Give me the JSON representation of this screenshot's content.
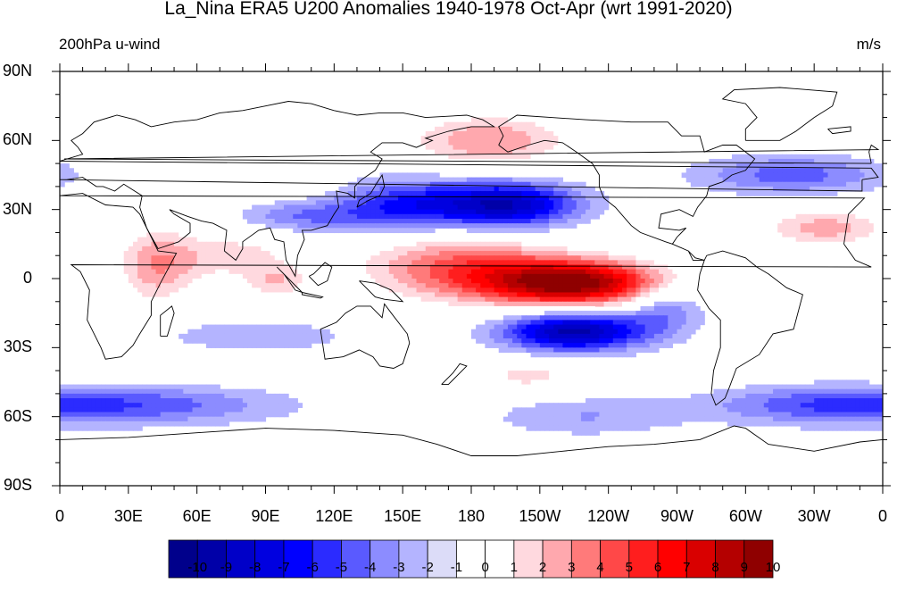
{
  "title": "La_Nina ERA5 U200 Anomalies 1940-1978 Oct-Apr (wrt 1991-2020)",
  "left_label": "200hPa u-wind",
  "right_label": "m/s",
  "lat_labels": [
    "90N",
    "60N",
    "30N",
    "0",
    "30S",
    "60S",
    "90S"
  ],
  "lon_labels": [
    "0",
    "30E",
    "60E",
    "90E",
    "120E",
    "150E",
    "180",
    "150W",
    "120W",
    "90W",
    "60W",
    "30W",
    "0"
  ],
  "colorbar": {
    "labels": [
      "-10",
      "-9",
      "-8",
      "-7",
      "-6",
      "-5",
      "-4",
      "-3",
      "-2",
      "-1",
      "0",
      "1",
      "2",
      "3",
      "4",
      "5",
      "6",
      "7",
      "8",
      "9",
      "10"
    ],
    "colors": [
      "#00008b",
      "#0000a8",
      "#0000c8",
      "#0000e0",
      "#0000ff",
      "#2b2bff",
      "#5a5aff",
      "#8c8cff",
      "#b4b4ff",
      "#dcdcf8",
      "#ffffff",
      "#ffffff",
      "#ffd9df",
      "#ffa8ae",
      "#ff7a7a",
      "#ff4848",
      "#ff1e1e",
      "#ff0000",
      "#d90000",
      "#b40000",
      "#8f0000"
    ]
  },
  "chart_data": {
    "type": "heatmap",
    "variable": "200hPa u-wind",
    "units": "m/s",
    "projection": "cylindrical equidistant",
    "lon_range": [
      0,
      360
    ],
    "lat_range": [
      -90,
      90
    ],
    "levels": [
      -10,
      -9,
      -8,
      -7,
      -6,
      -5,
      -4,
      -3,
      -2,
      -1,
      0,
      1,
      2,
      3,
      4,
      5,
      6,
      7,
      8,
      9,
      10
    ],
    "anomaly_features": [
      {
        "lon": 225,
        "lat": -2,
        "peak": 10.5,
        "sx": 28,
        "sy": 7
      },
      {
        "lon": 175,
        "lat": 5,
        "peak": 5,
        "sx": 30,
        "sy": 10
      },
      {
        "lon": 195,
        "lat": 32,
        "peak": -8,
        "sx": 22,
        "sy": 7
      },
      {
        "lon": 150,
        "lat": 32,
        "peak": -4.5,
        "sx": 20,
        "sy": 8
      },
      {
        "lon": 108,
        "lat": 27,
        "peak": -3,
        "sx": 22,
        "sy": 5
      },
      {
        "lon": 225,
        "lat": -23,
        "peak": -8.5,
        "sx": 22,
        "sy": 6
      },
      {
        "lon": 265,
        "lat": -12,
        "peak": -3,
        "sx": 12,
        "sy": 8
      },
      {
        "lon": 188,
        "lat": 60,
        "peak": 4,
        "sx": 25,
        "sy": 8
      },
      {
        "lon": 42,
        "lat": 5,
        "peak": 3.5,
        "sx": 12,
        "sy": 12
      },
      {
        "lon": 75,
        "lat": 10,
        "peak": 2.5,
        "sx": 22,
        "sy": 8
      },
      {
        "lon": 95,
        "lat": -2,
        "peak": 2.5,
        "sx": 10,
        "sy": 5
      },
      {
        "lon": 335,
        "lat": 22,
        "peak": 3.5,
        "sx": 20,
        "sy": 6
      },
      {
        "lon": 320,
        "lat": 45,
        "peak": -3.5,
        "sx": 30,
        "sy": 6
      },
      {
        "lon": 205,
        "lat": -42,
        "peak": 2.5,
        "sx": 15,
        "sy": 5
      },
      {
        "lon": 35,
        "lat": -55,
        "peak": -3.5,
        "sx": 45,
        "sy": 6
      },
      {
        "lon": 330,
        "lat": -55,
        "peak": -3,
        "sx": 35,
        "sy": 6
      },
      {
        "lon": 230,
        "lat": -60,
        "peak": -2,
        "sx": 30,
        "sy": 6
      },
      {
        "lon": 85,
        "lat": -25,
        "peak": -2,
        "sx": 30,
        "sy": 5
      },
      {
        "lon": 40,
        "lat": -38,
        "peak": 1.8,
        "sx": 35,
        "sy": 4
      },
      {
        "lon": 330,
        "lat": 75,
        "peak": 2,
        "sx": 30,
        "sy": 6
      },
      {
        "lon": 85,
        "lat": 40,
        "peak": 1.5,
        "sx": 20,
        "sy": 4
      }
    ]
  }
}
